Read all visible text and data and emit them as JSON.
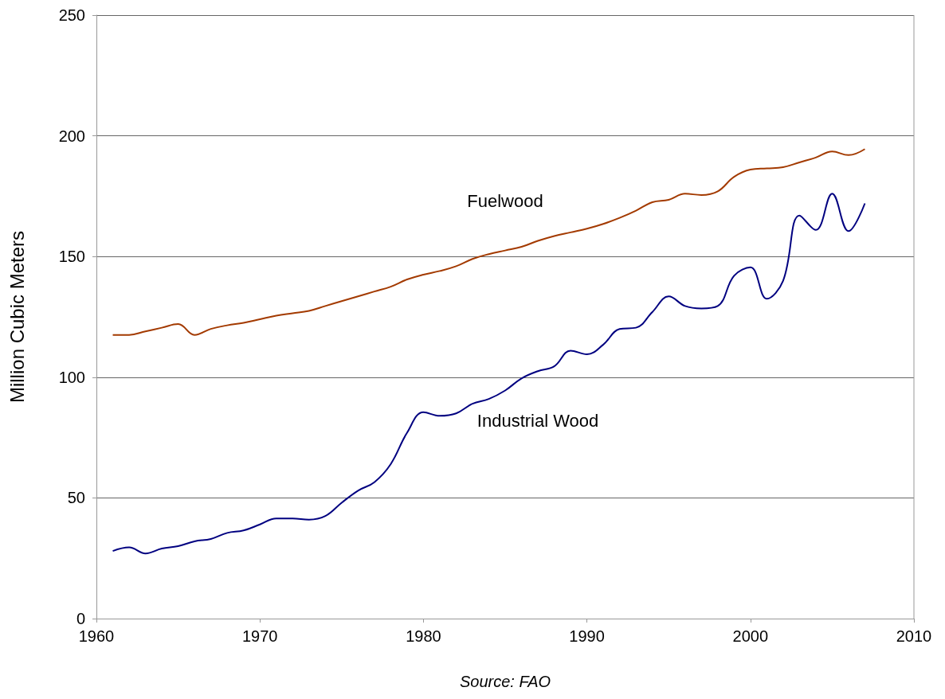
{
  "chart_data": {
    "type": "line",
    "ylabel": "Million Cubic Meters",
    "x": [
      1961,
      1962,
      1963,
      1964,
      1965,
      1966,
      1967,
      1968,
      1969,
      1970,
      1971,
      1972,
      1973,
      1974,
      1975,
      1976,
      1977,
      1978,
      1979,
      1980,
      1981,
      1982,
      1983,
      1984,
      1985,
      1986,
      1987,
      1988,
      1989,
      1990,
      1991,
      1992,
      1993,
      1994,
      1995,
      1996,
      1997,
      1998,
      1999,
      2000,
      2001,
      2002,
      2003,
      2004,
      2005,
      2006,
      2007
    ],
    "series": [
      {
        "name": "Fuelwood",
        "color": "#a33a00",
        "values": [
          117.5,
          117.5,
          119,
          120.5,
          122,
          117.5,
          120,
          121.5,
          122.5,
          124,
          125.5,
          126.5,
          127.5,
          129.5,
          131.5,
          133.5,
          135.5,
          137.5,
          140.5,
          142.5,
          144,
          146,
          149,
          151,
          152.5,
          154,
          156.5,
          158.5,
          160,
          161.5,
          163.5,
          166,
          169,
          172.5,
          173.5,
          176,
          175.5,
          177,
          183,
          186,
          186.5,
          187,
          189,
          191,
          193.5,
          192,
          194.5
        ]
      },
      {
        "name": "Industrial Wood",
        "color": "#000080",
        "values": [
          28,
          29.5,
          27,
          29,
          30,
          32,
          33,
          35.5,
          36.5,
          39,
          41.5,
          41.5,
          41,
          42.5,
          48,
          53,
          56.5,
          64,
          77,
          85.5,
          84,
          85,
          89,
          91,
          94.5,
          99.5,
          102.5,
          104.5,
          111,
          109.5,
          113.5,
          120,
          120.5,
          127,
          133.5,
          129.5,
          128.5,
          129.5,
          142,
          145.5,
          132.5,
          140,
          167,
          161,
          176,
          160.5,
          172
        ]
      }
    ],
    "xlim": [
      1960,
      2010
    ],
    "xticks": [
      1960,
      1970,
      1980,
      1990,
      2000,
      2010
    ],
    "ylim": [
      0,
      250
    ],
    "yticks": [
      0,
      50,
      100,
      150,
      200,
      250
    ],
    "grid": "y",
    "marker": "none",
    "line_style": "solid",
    "annotations": [
      "Source: FAO"
    ]
  }
}
